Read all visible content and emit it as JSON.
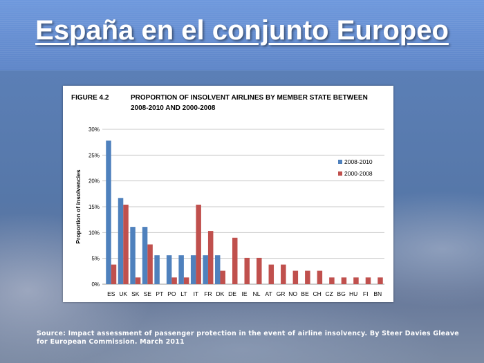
{
  "slide": {
    "title": "España en el conjunto Europeo",
    "source": "Source: Impact assessment of passenger protection in the event of airline insolvency. By Steer Davies Gleave for European Commission. March 2011"
  },
  "chart_data": {
    "type": "bar",
    "figure_label": "FIGURE 4.2",
    "title": "PROPORTION OF INSOLVENT AIRLINES BY MEMBER STATE BETWEEN",
    "subtitle": "2008-2010 AND 2000-2008",
    "xlabel": "",
    "ylabel": "Proportion of insolvencies",
    "ylim": [
      0,
      30
    ],
    "yticks": [
      "0%",
      "5%",
      "10%",
      "15%",
      "20%",
      "25%",
      "30%"
    ],
    "grid": true,
    "legend_position": "right",
    "categories": [
      "ES",
      "UK",
      "SK",
      "SE",
      "PT",
      "PO",
      "LT",
      "IT",
      "FR",
      "DK",
      "DE",
      "IE",
      "NL",
      "AT",
      "GR",
      "NO",
      "BE",
      "CH",
      "CZ",
      "BG",
      "HU",
      "FI",
      "BN"
    ],
    "series": [
      {
        "name": "2008-2010",
        "color": "#4f81bd",
        "values": [
          27.8,
          16.7,
          11.1,
          11.1,
          5.6,
          5.6,
          5.6,
          5.6,
          5.6,
          5.6,
          0,
          0,
          0,
          0,
          0,
          0,
          0,
          0,
          0,
          0,
          0,
          0,
          0
        ]
      },
      {
        "name": "2000-2008",
        "color": "#c0504d",
        "values": [
          3.8,
          15.4,
          1.3,
          7.7,
          0,
          1.3,
          1.3,
          15.4,
          10.3,
          2.6,
          9.0,
          5.1,
          5.1,
          3.8,
          3.8,
          2.6,
          2.6,
          2.6,
          1.3,
          1.3,
          1.3,
          1.3,
          1.3
        ]
      }
    ]
  }
}
